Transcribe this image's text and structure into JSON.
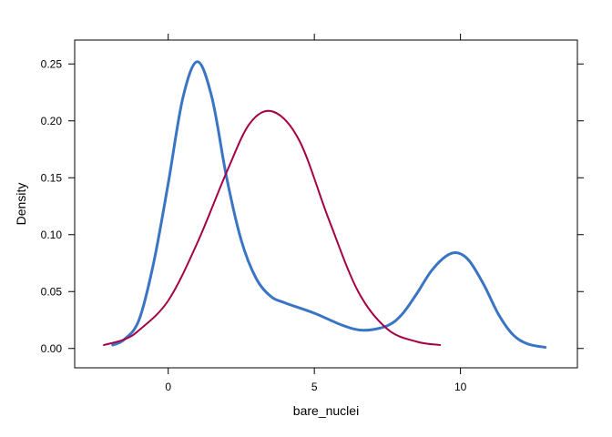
{
  "chart_data": {
    "type": "line",
    "title": "",
    "xlabel": "bare_nuclei",
    "ylabel": "Density",
    "xlim": [
      -3.2,
      14.0
    ],
    "ylim": [
      -0.017,
      0.271
    ],
    "x_ticks": [
      0,
      5,
      10
    ],
    "x_tick_labels": [
      "0",
      "5",
      "10"
    ],
    "y_ticks": [
      0.0,
      0.05,
      0.1,
      0.15,
      0.2,
      0.25
    ],
    "y_tick_labels": [
      "0.00",
      "0.05",
      "0.10",
      "0.15",
      "0.20",
      "0.25"
    ],
    "grid": false,
    "legend": "none",
    "series": [
      {
        "color": "#3a75c4",
        "x": [
          -1.9,
          -1.5,
          -1.0,
          -0.5,
          0.0,
          0.5,
          1.0,
          1.5,
          2.0,
          2.5,
          3.0,
          3.5,
          4.0,
          5.0,
          6.0,
          6.7,
          7.5,
          8.0,
          8.5,
          9.0,
          9.5,
          9.9,
          10.3,
          10.8,
          11.3,
          11.8,
          12.3,
          12.9
        ],
        "y": [
          0.003,
          0.008,
          0.025,
          0.075,
          0.145,
          0.22,
          0.252,
          0.22,
          0.15,
          0.095,
          0.062,
          0.046,
          0.04,
          0.031,
          0.02,
          0.016,
          0.02,
          0.03,
          0.048,
          0.068,
          0.081,
          0.084,
          0.077,
          0.056,
          0.03,
          0.012,
          0.004,
          0.001
        ]
      },
      {
        "color": "#a50045",
        "x": [
          -2.2,
          -1.5,
          -1.0,
          0.0,
          1.0,
          2.0,
          2.8,
          3.6,
          4.5,
          5.5,
          6.5,
          7.5,
          8.5,
          9.3
        ],
        "y": [
          0.003,
          0.008,
          0.016,
          0.042,
          0.093,
          0.155,
          0.198,
          0.208,
          0.182,
          0.113,
          0.05,
          0.017,
          0.006,
          0.003
        ]
      }
    ]
  }
}
